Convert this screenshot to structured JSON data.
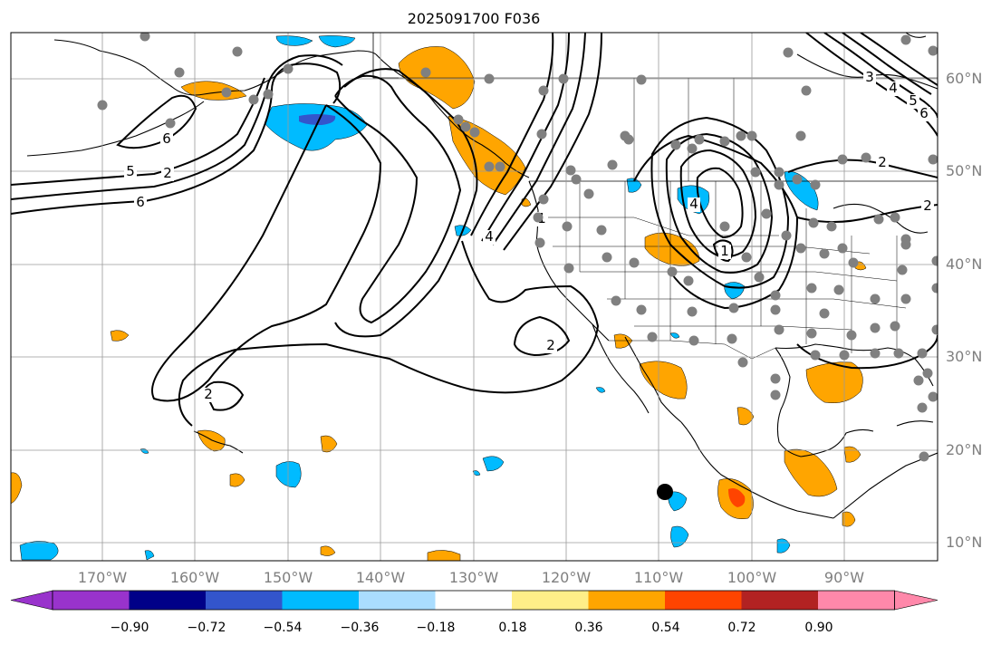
{
  "title": "2025091700 F036",
  "map": {
    "lat_labels": [
      "60°N",
      "50°N",
      "40°N",
      "30°N",
      "20°N",
      "10°N"
    ],
    "lon_labels": [
      "170°W",
      "160°W",
      "150°W",
      "140°W",
      "130°W",
      "120°W",
      "110°W",
      "100°W",
      "90°W"
    ]
  },
  "contour_labels": [
    "6",
    "5",
    "2",
    "6",
    "2",
    "4",
    "2",
    "1",
    "4",
    "1",
    "2",
    "6",
    "5",
    "4",
    "3",
    "2"
  ],
  "colorbar": {
    "tick_labels": [
      "−0.90",
      "−0.72",
      "−0.54",
      "−0.36",
      "−0.18",
      "0.18",
      "0.36",
      "0.54",
      "0.72",
      "0.90"
    ],
    "colors": [
      "#9933cc",
      "#000088",
      "#3355cc",
      "#00bbff",
      "#aaddff",
      "#ffffff",
      "#ffee88",
      "#ffa500",
      "#ff4400",
      "#b22222",
      "#ff88aa",
      "#ff88aa"
    ]
  },
  "colors": {
    "negative_fill": "#00bbff",
    "negative_core": "#3355cc",
    "positive_fill": "#ffa500",
    "positive_core": "#ff4400",
    "station": "#808080",
    "storm_marker": "#000000"
  }
}
